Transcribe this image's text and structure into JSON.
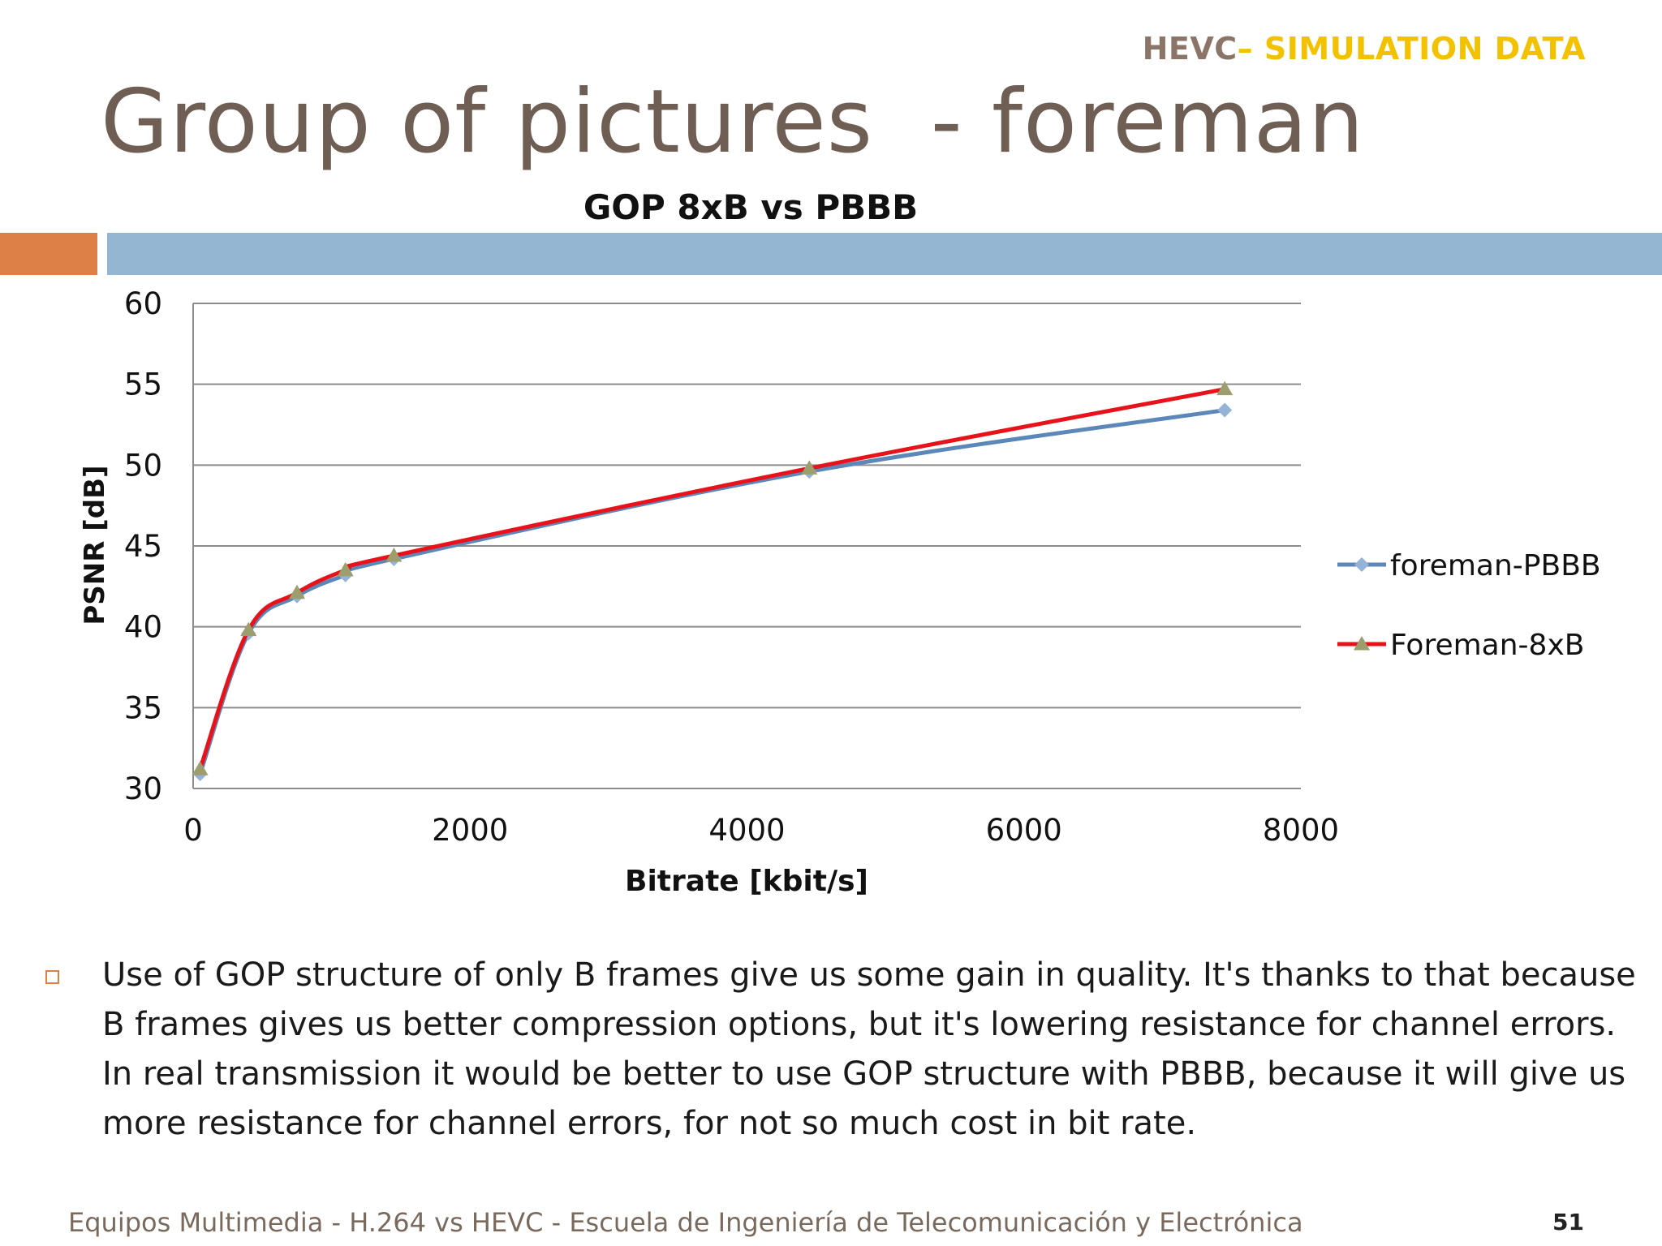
{
  "header": {
    "part1": "HEVC",
    "part2": "– SIMULATION DATA"
  },
  "slide_title": "Group of pictures  - foreman",
  "colors": {
    "title": "#6f5e54",
    "accent_orange": "#dd8047",
    "accent_blue": "#94b6d2",
    "series_pbbb": "#4f81bd",
    "series_8xb": "#e8121b",
    "marker_8xb": "#9bbb59"
  },
  "chart_data": {
    "type": "line",
    "title": "GOP 8xB vs PBBB",
    "xlabel": "Bitrate [kbit/s]",
    "ylabel": "PSNR [dB]",
    "xlim": [
      0,
      8000
    ],
    "ylim": [
      30,
      60
    ],
    "xticks": [
      "0",
      "2000",
      "4000",
      "6000",
      "8000"
    ],
    "yticks": [
      "30",
      "35",
      "40",
      "45",
      "50",
      "55",
      "60"
    ],
    "grid": true,
    "legend_position": "right",
    "series": [
      {
        "name": "foreman-PBBB",
        "marker": "diamond",
        "x": [
          50,
          400,
          750,
          1100,
          1450,
          4450,
          7450
        ],
        "y": [
          30.9,
          39.6,
          41.9,
          43.2,
          44.2,
          49.6,
          53.4
        ]
      },
      {
        "name": "Foreman-8xB",
        "marker": "triangle",
        "x": [
          50,
          400,
          750,
          1100,
          1450,
          4450,
          7450
        ],
        "y": [
          31.2,
          39.8,
          42.1,
          43.5,
          44.4,
          49.8,
          54.7
        ]
      }
    ]
  },
  "body": {
    "text": "Use of GOP structure of only B frames give us some gain in quality. It's thanks to that because B frames gives us better compression options, but it's lowering resistance for channel errors. In real transmission it would be better to use GOP structure with PBBB, because it will give us more resistance for channel errors, for not so much cost in bit rate."
  },
  "footer": {
    "text": "Equipos Multimedia - H.264 vs HEVC - Escuela de Ingeniería de Telecomunicación y Electrónica",
    "page_number": "51"
  }
}
